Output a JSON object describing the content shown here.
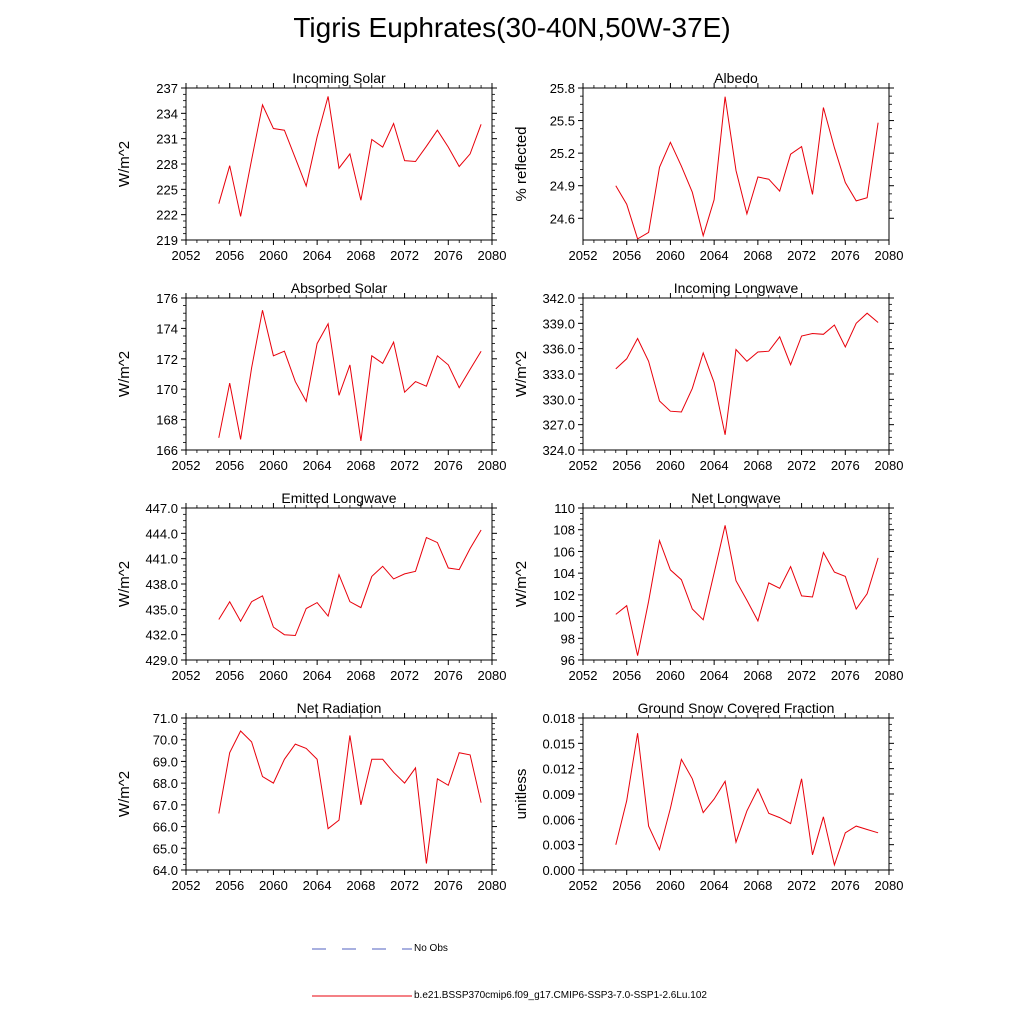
{
  "title": "Tigris Euphrates(30-40N,50W-37E)",
  "legend": [
    {
      "label": "No Obs",
      "color": "#5060c0",
      "dash": true
    },
    {
      "label": "b.e21.BSSP370cmip6.f09_g17.CMIP6-SSP3-7.0-SSP1-2.6Lu.102",
      "color": "#e8000b",
      "dash": false
    }
  ],
  "chart_data": [
    {
      "type": "line",
      "title": "Incoming Solar",
      "ylabel": "W/m^2",
      "xlim": [
        2052,
        2080
      ],
      "xticks": [
        "2052",
        "2056",
        "2060",
        "2064",
        "2068",
        "2072",
        "2076",
        "2080"
      ],
      "ylim": [
        219,
        237
      ],
      "yticks": [
        "219",
        "222",
        "225",
        "228",
        "231",
        "234",
        "237"
      ],
      "x": [
        2055,
        2056,
        2057,
        2058,
        2059,
        2060,
        2061,
        2062,
        2063,
        2064,
        2065,
        2066,
        2067,
        2068,
        2069,
        2070,
        2071,
        2072,
        2073,
        2074,
        2075,
        2076,
        2077,
        2078,
        2079
      ],
      "series": [
        {
          "values": [
            223.3,
            227.8,
            221.8,
            228.5,
            235.0,
            232.2,
            232.0,
            228.7,
            225.4,
            231.2,
            236.0,
            227.5,
            229.2,
            223.7,
            230.9,
            230.0,
            232.8,
            228.4,
            228.3,
            230.1,
            232.0,
            230.0,
            227.7,
            229.2,
            232.7
          ],
          "color": "#e8000b"
        }
      ]
    },
    {
      "type": "line",
      "title": "Albedo",
      "ylabel": "% reflected",
      "xlim": [
        2052,
        2080
      ],
      "xticks": [
        "2052",
        "2056",
        "2060",
        "2064",
        "2068",
        "2072",
        "2076",
        "2080"
      ],
      "ylim": [
        24.4,
        25.8
      ],
      "yticks": [
        "24.6",
        "24.9",
        "25.2",
        "25.5",
        "25.8"
      ],
      "x": [
        2055,
        2056,
        2057,
        2058,
        2059,
        2060,
        2061,
        2062,
        2063,
        2064,
        2065,
        2066,
        2067,
        2068,
        2069,
        2070,
        2071,
        2072,
        2073,
        2074,
        2075,
        2076,
        2077,
        2078,
        2079
      ],
      "series": [
        {
          "values": [
            24.9,
            24.73,
            24.41,
            24.47,
            25.07,
            25.3,
            25.08,
            24.84,
            24.44,
            24.77,
            25.72,
            25.04,
            24.64,
            24.98,
            24.96,
            24.85,
            25.19,
            25.26,
            24.82,
            25.62,
            25.25,
            24.93,
            24.76,
            24.79,
            25.48
          ],
          "color": "#e8000b"
        }
      ]
    },
    {
      "type": "line",
      "title": "Absorbed Solar",
      "ylabel": "W/m^2",
      "xlim": [
        2052,
        2080
      ],
      "xticks": [
        "2052",
        "2056",
        "2060",
        "2064",
        "2068",
        "2072",
        "2076",
        "2080"
      ],
      "ylim": [
        166,
        176
      ],
      "yticks": [
        "166",
        "168",
        "170",
        "172",
        "174",
        "176"
      ],
      "x": [
        2055,
        2056,
        2057,
        2058,
        2059,
        2060,
        2061,
        2062,
        2063,
        2064,
        2065,
        2066,
        2067,
        2068,
        2069,
        2070,
        2071,
        2072,
        2073,
        2074,
        2075,
        2076,
        2077,
        2078,
        2079
      ],
      "series": [
        {
          "values": [
            166.8,
            170.4,
            166.7,
            171.4,
            175.2,
            172.2,
            172.5,
            170.5,
            169.2,
            173.0,
            174.3,
            169.6,
            171.6,
            166.6,
            172.2,
            171.7,
            173.1,
            169.8,
            170.5,
            170.2,
            172.2,
            171.6,
            170.1,
            171.3,
            172.5
          ],
          "color": "#e8000b"
        }
      ]
    },
    {
      "type": "line",
      "title": "Incoming Longwave",
      "ylabel": "W/m^2",
      "xlim": [
        2052,
        2080
      ],
      "xticks": [
        "2052",
        "2056",
        "2060",
        "2064",
        "2068",
        "2072",
        "2076",
        "2080"
      ],
      "ylim": [
        324,
        342
      ],
      "yticks": [
        "324.0",
        "327.0",
        "330.0",
        "333.0",
        "336.0",
        "339.0",
        "342.0"
      ],
      "x": [
        2055,
        2056,
        2057,
        2058,
        2059,
        2060,
        2061,
        2062,
        2063,
        2064,
        2065,
        2066,
        2067,
        2068,
        2069,
        2070,
        2071,
        2072,
        2073,
        2074,
        2075,
        2076,
        2077,
        2078,
        2079
      ],
      "series": [
        {
          "values": [
            333.6,
            334.8,
            337.2,
            334.5,
            329.8,
            328.6,
            328.5,
            331.3,
            335.5,
            332.0,
            325.8,
            335.9,
            334.5,
            335.6,
            335.7,
            337.4,
            334.1,
            337.5,
            337.8,
            337.7,
            338.8,
            336.2,
            339.0,
            340.2,
            339.1
          ],
          "color": "#e8000b"
        }
      ]
    },
    {
      "type": "line",
      "title": "Emitted Longwave",
      "ylabel": "W/m^2",
      "xlim": [
        2052,
        2080
      ],
      "xticks": [
        "2052",
        "2056",
        "2060",
        "2064",
        "2068",
        "2072",
        "2076",
        "2080"
      ],
      "ylim": [
        429,
        447
      ],
      "yticks": [
        "429.0",
        "432.0",
        "435.0",
        "438.0",
        "441.0",
        "444.0",
        "447.0"
      ],
      "x": [
        2055,
        2056,
        2057,
        2058,
        2059,
        2060,
        2061,
        2062,
        2063,
        2064,
        2065,
        2066,
        2067,
        2068,
        2069,
        2070,
        2071,
        2072,
        2073,
        2074,
        2075,
        2076,
        2077,
        2078,
        2079
      ],
      "series": [
        {
          "values": [
            433.8,
            435.9,
            433.6,
            435.9,
            436.6,
            432.9,
            432.0,
            431.9,
            435.1,
            435.8,
            434.2,
            439.1,
            435.9,
            435.2,
            438.9,
            440.1,
            438.6,
            439.2,
            439.5,
            443.5,
            442.9,
            439.9,
            439.7,
            442.2,
            444.4
          ],
          "color": "#e8000b"
        }
      ]
    },
    {
      "type": "line",
      "title": "Net Longwave",
      "ylabel": "W/m^2",
      "xlim": [
        2052,
        2080
      ],
      "xticks": [
        "2052",
        "2056",
        "2060",
        "2064",
        "2068",
        "2072",
        "2076",
        "2080"
      ],
      "ylim": [
        96,
        110
      ],
      "yticks": [
        "96",
        "98",
        "100",
        "102",
        "104",
        "106",
        "108",
        "110"
      ],
      "x": [
        2055,
        2056,
        2057,
        2058,
        2059,
        2060,
        2061,
        2062,
        2063,
        2064,
        2065,
        2066,
        2067,
        2068,
        2069,
        2070,
        2071,
        2072,
        2073,
        2074,
        2075,
        2076,
        2077,
        2078,
        2079
      ],
      "series": [
        {
          "values": [
            100.2,
            101.0,
            96.4,
            101.4,
            107.0,
            104.3,
            103.4,
            100.7,
            99.7,
            104.0,
            108.4,
            103.3,
            101.5,
            99.6,
            103.1,
            102.6,
            104.6,
            101.9,
            101.8,
            105.9,
            104.1,
            103.7,
            100.7,
            102.1,
            105.4
          ],
          "color": "#e8000b"
        }
      ]
    },
    {
      "type": "line",
      "title": "Net Radiation",
      "ylabel": "W/m^2",
      "xlim": [
        2052,
        2080
      ],
      "xticks": [
        "2052",
        "2056",
        "2060",
        "2064",
        "2068",
        "2072",
        "2076",
        "2080"
      ],
      "ylim": [
        64,
        71
      ],
      "yticks": [
        "64.0",
        "65.0",
        "66.0",
        "67.0",
        "68.0",
        "69.0",
        "70.0",
        "71.0"
      ],
      "x": [
        2055,
        2056,
        2057,
        2058,
        2059,
        2060,
        2061,
        2062,
        2063,
        2064,
        2065,
        2066,
        2067,
        2068,
        2069,
        2070,
        2071,
        2072,
        2073,
        2074,
        2075,
        2076,
        2077,
        2078,
        2079
      ],
      "series": [
        {
          "values": [
            66.6,
            69.4,
            70.4,
            69.9,
            68.3,
            68.0,
            69.1,
            69.8,
            69.6,
            69.1,
            65.9,
            66.3,
            70.2,
            67.0,
            69.1,
            69.1,
            68.5,
            68.0,
            68.7,
            64.3,
            68.2,
            67.9,
            69.4,
            69.3,
            67.1
          ],
          "color": "#e8000b"
        }
      ]
    },
    {
      "type": "line",
      "title": "Ground Snow Covered Fraction",
      "ylabel": "unitless",
      "xlim": [
        2052,
        2080
      ],
      "xticks": [
        "2052",
        "2056",
        "2060",
        "2064",
        "2068",
        "2072",
        "2076",
        "2080"
      ],
      "ylim": [
        0,
        0.018
      ],
      "yticks": [
        "0.000",
        "0.003",
        "0.006",
        "0.009",
        "0.012",
        "0.015",
        "0.018"
      ],
      "x": [
        2055,
        2056,
        2057,
        2058,
        2059,
        2060,
        2061,
        2062,
        2063,
        2064,
        2065,
        2066,
        2067,
        2068,
        2069,
        2070,
        2071,
        2072,
        2073,
        2074,
        2075,
        2076,
        2077,
        2078,
        2079
      ],
      "series": [
        {
          "values": [
            0.003,
            0.0082,
            0.0162,
            0.0052,
            0.0024,
            0.0073,
            0.0131,
            0.0108,
            0.0068,
            0.0084,
            0.0105,
            0.0033,
            0.007,
            0.0096,
            0.0067,
            0.0062,
            0.0055,
            0.0108,
            0.0018,
            0.0063,
            0.0006,
            0.0044,
            0.0052,
            0.0048,
            0.0044
          ],
          "color": "#e8000b"
        }
      ]
    }
  ]
}
